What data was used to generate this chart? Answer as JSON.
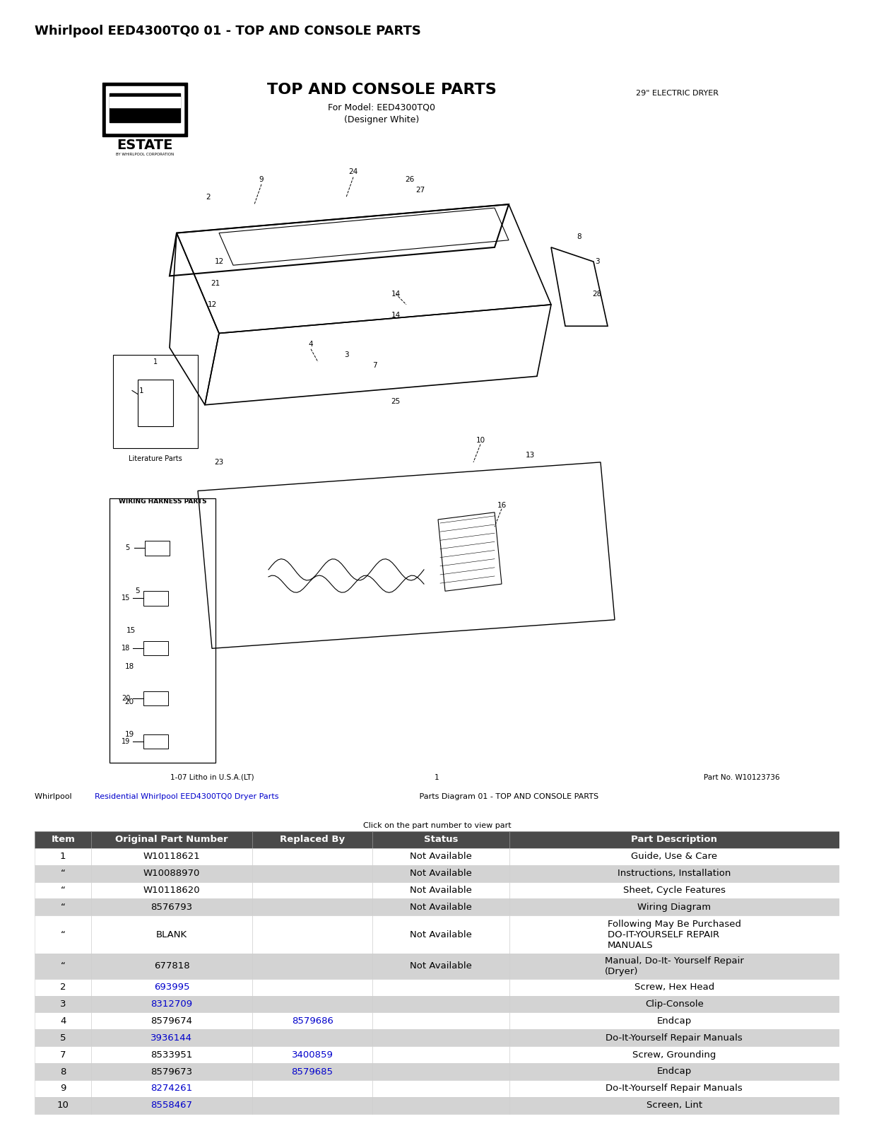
{
  "page_title": "Whirlpool EED4300TQ0 01 - TOP AND CONSOLE PARTS",
  "diagram_title": "TOP AND CONSOLE PARTS",
  "diagram_subtitle1": "For Model: EED4300TQ0",
  "diagram_subtitle2": "(Designer White)",
  "diagram_right_text": "29\" ELECTRIC DRYER",
  "footer_left": "1-07 Litho in U.S.A.(LT)",
  "footer_center": "1",
  "footer_right": "Part No. W10123736",
  "link_line2": "Click on the part number to view part",
  "table_headers": [
    "Item",
    "Original Part Number",
    "Replaced By",
    "Status",
    "Part Description"
  ],
  "table_rows": [
    [
      "1",
      "W10118621",
      "",
      "Not Available",
      "Guide, Use & Care"
    ],
    [
      "“",
      "W10088970",
      "",
      "Not Available",
      "Instructions, Installation"
    ],
    [
      "“",
      "W10118620",
      "",
      "Not Available",
      "Sheet, Cycle Features"
    ],
    [
      "“",
      "8576793",
      "",
      "Not Available",
      "Wiring Diagram"
    ],
    [
      "“",
      "BLANK",
      "",
      "Not Available",
      "Following May Be Purchased\nDO-IT-YOURSELF REPAIR\nMANUALS"
    ],
    [
      "“",
      "677818",
      "",
      "Not Available",
      "Manual, Do-It- Yourself Repair\n(Dryer)"
    ],
    [
      "2",
      "693995",
      "",
      "",
      "Screw, Hex Head"
    ],
    [
      "3",
      "8312709",
      "",
      "",
      "Clip-Console"
    ],
    [
      "4",
      "8579674",
      "8579686",
      "",
      "Endcap"
    ],
    [
      "5",
      "3936144",
      "",
      "",
      "Do-It-Yourself Repair Manuals"
    ],
    [
      "7",
      "8533951",
      "3400859",
      "",
      "Screw, Grounding"
    ],
    [
      "8",
      "8579673",
      "8579685",
      "",
      "Endcap"
    ],
    [
      "9",
      "8274261",
      "",
      "",
      "Do-It-Yourself Repair Manuals"
    ],
    [
      "10",
      "8558467",
      "",
      "",
      "Screen, Lint"
    ]
  ],
  "link_color": "#0000cc",
  "header_bg": "#4a4a4a",
  "header_fg": "#ffffff",
  "row_bg_even": "#d3d3d3",
  "row_bg_odd": "#ffffff",
  "background_color": "#ffffff",
  "title_fontsize": 13,
  "table_fontsize": 9.5
}
